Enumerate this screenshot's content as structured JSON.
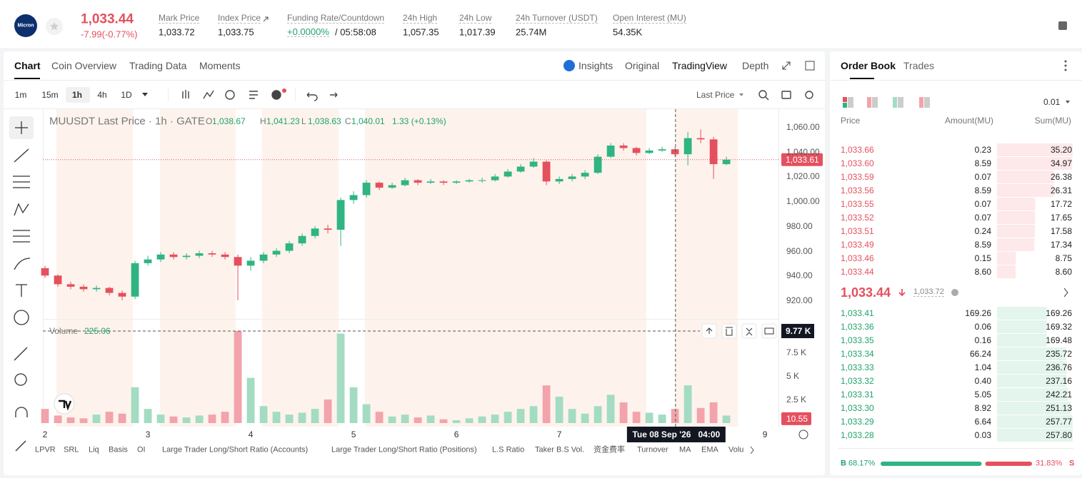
{
  "header": {
    "logo": "Micron",
    "price": "1,033.44",
    "change": "-7.99(-0.77%)",
    "stats": [
      {
        "label": "Mark Price",
        "value": "1,033.72"
      },
      {
        "label": "Index Price",
        "value": "1,033.75"
      },
      {
        "label": "Funding Rate/Countdown",
        "value": "+0.0000%",
        "countdown": "/ 05:58:08"
      },
      {
        "label": "24h High",
        "value": "1,057.35"
      },
      {
        "label": "24h Low",
        "value": "1,017.39"
      },
      {
        "label": "24h Turnover (USDT)",
        "value": "25.74M"
      },
      {
        "label": "Open Interest (MU)",
        "value": "54.35K"
      }
    ]
  },
  "chart_tabs": [
    "Chart",
    "Coin Overview",
    "Trading Data",
    "Moments"
  ],
  "view_tabs": [
    "Insights",
    "Original",
    "TradingView",
    "Depth"
  ],
  "intervals": [
    "1m",
    "15m",
    "1h",
    "4h",
    "1D"
  ],
  "price_source": "Last Price",
  "indicators": [
    "LPVR",
    "SRL",
    "Liq",
    "Basis",
    "OI",
    "Large Trader Long/Short Ratio (Accounts)",
    "Large Trader Long/Short Ratio (Positions)",
    "L.S Ratio",
    "Taker B.S Vol.",
    "资金费率",
    "Turnover",
    "MA",
    "EMA",
    "Volu"
  ],
  "chart": {
    "type": "candlestick",
    "legend": {
      "title": "MUUSDT Last Price · 1h · GATE",
      "ohlc": [
        {
          "key": "O",
          "value": "1,038.67"
        },
        {
          "key": "H",
          "value": "1,041.23"
        },
        {
          "key": "L",
          "value": "1,038.63"
        },
        {
          "key": "C",
          "value": "1,040.01"
        }
      ],
      "change": "1.33 (+0.13%)",
      "volume_name": "Volume",
      "volume_value": "225.06"
    },
    "up_color": "#2fb482",
    "down_color": "#e5505e",
    "up_volume_color": "#a3dcc2",
    "down_volume_color": "#f3a3ab",
    "x": [
      2,
      2.125,
      2.25,
      2.375,
      2.5,
      2.625,
      2.75,
      2.875,
      3,
      3.125,
      3.25,
      3.375,
      3.5,
      3.625,
      3.75,
      3.875,
      4,
      4.125,
      4.25,
      4.375,
      4.5,
      4.625,
      4.75,
      4.875,
      5,
      5.125,
      5.25,
      5.375,
      5.5,
      5.625,
      5.75,
      5.875,
      6,
      6.125,
      6.25,
      6.375,
      6.5,
      6.625,
      6.75,
      6.875,
      7,
      7.125,
      7.25,
      7.375,
      7.5,
      7.625,
      7.75,
      7.875,
      8,
      8.125,
      8.25,
      8.375,
      8.5,
      8.625
    ],
    "open": [
      946,
      940,
      933,
      931,
      929,
      930,
      926,
      923,
      950,
      953,
      957,
      955,
      956,
      958,
      957,
      955,
      948,
      952,
      957,
      960,
      966,
      972,
      978,
      977,
      1001,
      1005,
      1015,
      1011,
      1013,
      1017,
      1015,
      1016,
      1015,
      1016,
      1017,
      1017,
      1020,
      1024,
      1028,
      1032,
      1016,
      1018,
      1020,
      1023,
      1036,
      1045,
      1043,
      1039,
      1041,
      1042,
      1038,
      1051,
      1050,
      1030
    ],
    "high": [
      948,
      941,
      935,
      933,
      932,
      931,
      928,
      952,
      956,
      959,
      959,
      958,
      960,
      960,
      959,
      957,
      955,
      959,
      962,
      968,
      974,
      980,
      981,
      1003,
      1008,
      1017,
      1016,
      1015,
      1019,
      1018,
      1018,
      1017,
      1017,
      1018,
      1019,
      1022,
      1026,
      1030,
      1035,
      1033,
      1020,
      1022,
      1025,
      1038,
      1047,
      1047,
      1044,
      1043,
      1044,
      1044,
      1056,
      1058,
      1052,
      1036
    ],
    "low": [
      938,
      931,
      929,
      927,
      927,
      924,
      920,
      921,
      948,
      951,
      953,
      953,
      954,
      955,
      953,
      920,
      944,
      950,
      955,
      958,
      964,
      970,
      974,
      964,
      998,
      1003,
      1009,
      1010,
      1012,
      1013,
      1014,
      1013,
      1014,
      1015,
      1015,
      1016,
      1019,
      1023,
      1027,
      1013,
      1014,
      1016,
      1018,
      1022,
      1035,
      1041,
      1037,
      1038,
      1040,
      1036,
      1029,
      1047,
      1018,
      1029
    ],
    "close": [
      940,
      933,
      931,
      929,
      930,
      926,
      923,
      950,
      953,
      957,
      955,
      956,
      958,
      957,
      955,
      948,
      952,
      957,
      960,
      966,
      972,
      978,
      977,
      1001,
      1005,
      1015,
      1011,
      1013,
      1017,
      1015,
      1016,
      1015,
      1016,
      1017,
      1017,
      1020,
      1024,
      1028,
      1032,
      1016,
      1018,
      1020,
      1023,
      1036,
      1045,
      1043,
      1039,
      1041,
      1042,
      1038,
      1051,
      1050,
      1030,
      1033.61
    ],
    "volume": [
      1500,
      800,
      600,
      500,
      900,
      1200,
      1000,
      3800,
      1500,
      900,
      700,
      600,
      800,
      900,
      1200,
      9770,
      4800,
      1800,
      1200,
      900,
      1100,
      1500,
      2500,
      9500,
      3800,
      2000,
      1200,
      700,
      900,
      600,
      800,
      400,
      300,
      500,
      700,
      900,
      1200,
      1500,
      1800,
      4000,
      2800,
      1500,
      1000,
      1800,
      3000,
      2200,
      1200,
      1100,
      900,
      1500,
      4000,
      1600,
      2200,
      800
    ],
    "xlim": [
      1.979,
      9.131
    ],
    "xticks": [
      2,
      3,
      4,
      5,
      6,
      7,
      9
    ],
    "ylim": [
      905,
      1074.4
    ],
    "yticks": [
      {
        "value": 1060,
        "label": "1,060.00"
      },
      {
        "value": 1040,
        "label": "1,040.00"
      },
      {
        "value": 1020,
        "label": "1,020.00"
      },
      {
        "value": 1000,
        "label": "1,000.00"
      },
      {
        "value": 980,
        "label": "980.00"
      },
      {
        "value": 960,
        "label": "960.00"
      },
      {
        "value": 940,
        "label": "940.00"
      },
      {
        "value": 920,
        "label": "920.00"
      }
    ],
    "volume_ylim": [
      0,
      10450
    ],
    "volume_ticks": [
      {
        "value": 7500,
        "label": "7.5 K"
      },
      {
        "value": 5000,
        "label": "5 K"
      },
      {
        "value": 2500,
        "label": "2.5 K"
      }
    ],
    "last_price": {
      "value": 1033.61,
      "label": "1,033.61"
    },
    "current_volume": {
      "value": 10.55,
      "label": "10.55"
    },
    "crosshair": {
      "x": 8.13,
      "time_label": "Tue 08 Sep '26   04:00",
      "volume": {
        "value": 9770,
        "label": "9.77 K"
      }
    }
  },
  "order_book": {
    "tabs": [
      "Order Book",
      "Trades"
    ],
    "precision": "0.01",
    "columns": [
      "Price",
      "Amount(MU)",
      "Sum(MU)"
    ],
    "asks": [
      {
        "price": "1,033.66",
        "amount": "0.23",
        "sum": "35.20"
      },
      {
        "price": "1,033.60",
        "amount": "8.59",
        "sum": "34.97"
      },
      {
        "price": "1,033.59",
        "amount": "0.07",
        "sum": "26.38"
      },
      {
        "price": "1,033.56",
        "amount": "8.59",
        "sum": "26.31"
      },
      {
        "price": "1,033.55",
        "amount": "0.07",
        "sum": "17.72"
      },
      {
        "price": "1,033.52",
        "amount": "0.07",
        "sum": "17.65"
      },
      {
        "price": "1,033.51",
        "amount": "0.24",
        "sum": "17.58"
      },
      {
        "price": "1,033.49",
        "amount": "8.59",
        "sum": "17.34"
      },
      {
        "price": "1,033.46",
        "amount": "0.15",
        "sum": "8.75"
      },
      {
        "price": "1,033.44",
        "amount": "8.60",
        "sum": "8.60"
      }
    ],
    "last_price": "1,033.44",
    "mark_price": "1,033.72",
    "bids": [
      {
        "price": "1,033.41",
        "amount": "169.26",
        "sum": "169.26"
      },
      {
        "price": "1,033.36",
        "amount": "0.06",
        "sum": "169.32"
      },
      {
        "price": "1,033.35",
        "amount": "0.16",
        "sum": "169.48"
      },
      {
        "price": "1,033.34",
        "amount": "66.24",
        "sum": "235.72"
      },
      {
        "price": "1,033.33",
        "amount": "1.04",
        "sum": "236.76"
      },
      {
        "price": "1,033.32",
        "amount": "0.40",
        "sum": "237.16"
      },
      {
        "price": "1,033.31",
        "amount": "5.05",
        "sum": "242.21"
      },
      {
        "price": "1,033.30",
        "amount": "8.92",
        "sum": "251.13"
      },
      {
        "price": "1,033.29",
        "amount": "6.64",
        "sum": "257.77"
      },
      {
        "price": "1,033.28",
        "amount": "0.03",
        "sum": "257.80"
      }
    ],
    "ratio": {
      "buy_key": "B",
      "buy": {
        "value": 68.17,
        "label": "68.17%"
      },
      "sell": {
        "value": 31.83,
        "label": "31.83%"
      },
      "sell_key": "S"
    }
  }
}
